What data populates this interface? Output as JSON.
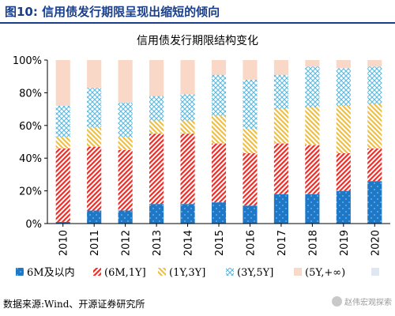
{
  "figure_label": "图10:",
  "figure_title": "信用债发行期限呈现出缩短的倾向",
  "source": "数据来源:Wind、开源证券研究所",
  "watermark": "赵伟宏观探索",
  "watermark_icon": "wechat-icon",
  "colors": {
    "header": "#1a3f8a",
    "6M": "#1e78c8",
    "6M-1Y": "#e5322d",
    "1Y-3Y": "#f5c031",
    "3Y-5Y": "#5ab9de",
    "5Y+": "#f9d8c8"
  },
  "chart_data": {
    "type": "bar",
    "stacked": true,
    "title": "信用债发行期限结构变化",
    "categories": [
      "2010",
      "2011",
      "2012",
      "2013",
      "2014",
      "2015",
      "2016",
      "2017",
      "2018",
      "2019",
      "2020"
    ],
    "ylim": [
      0,
      100
    ],
    "yticks": [
      "0%",
      "20%",
      "40%",
      "60%",
      "80%",
      "100%"
    ],
    "legend": "bottom",
    "series": [
      {
        "name": "6M及以内",
        "values": [
          1,
          8,
          8,
          12,
          12,
          13,
          11,
          18,
          18,
          20,
          26
        ]
      },
      {
        "name": "(6M,1Y]",
        "values": [
          45,
          39,
          37,
          43,
          43,
          36,
          32,
          31,
          30,
          23,
          20
        ]
      },
      {
        "name": "(1Y,3Y]",
        "values": [
          7,
          12,
          8,
          8,
          8,
          17,
          15,
          21,
          23,
          29,
          27
        ]
      },
      {
        "name": "(3Y,5Y]",
        "values": [
          19,
          24,
          21,
          15,
          16,
          25,
          30,
          21,
          25,
          23,
          23
        ]
      },
      {
        "name": "(5Y,+∞)",
        "values": [
          28,
          17,
          26,
          22,
          21,
          9,
          12,
          9,
          4,
          5,
          4
        ]
      }
    ]
  }
}
